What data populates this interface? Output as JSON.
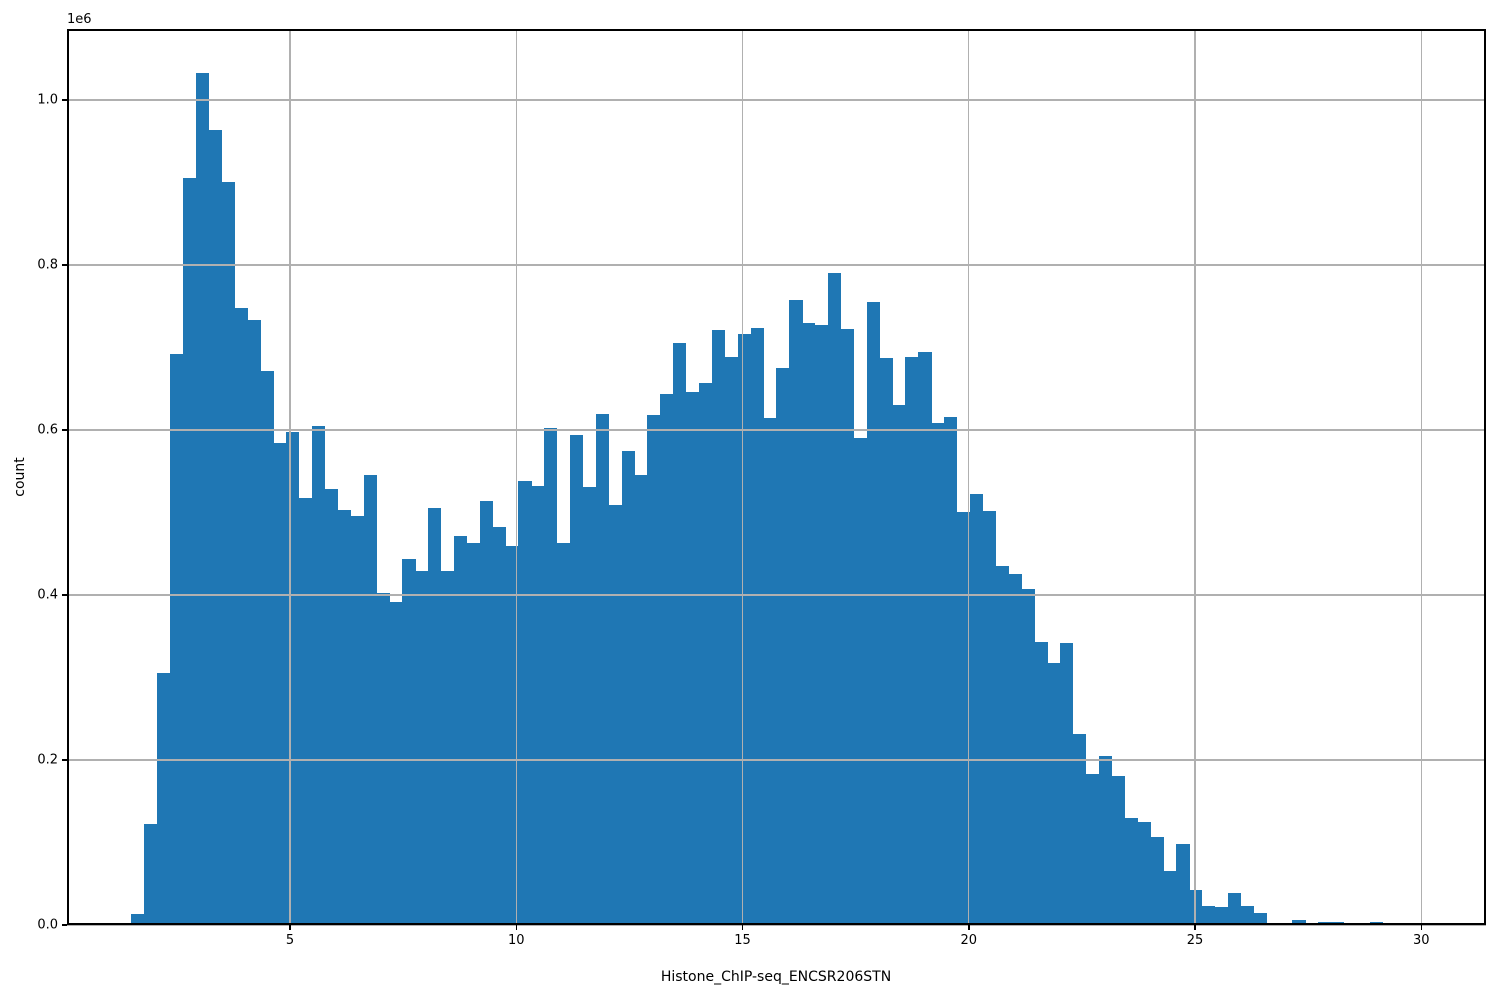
{
  "chart": {
    "xlabel": "Histone_ChIP-seq_ENCSR206STN",
    "ylabel": "count",
    "offset_label": "1e6",
    "bar_color": "#1f77b4",
    "grid_color": "#b0b0b0",
    "spine_color": "#000000",
    "background_color": "#ffffff"
  },
  "chart_data": {
    "type": "bar",
    "subtype": "histogram",
    "title": "",
    "xlabel": "Histone_ChIP-seq_ENCSR206STN",
    "ylabel": "count",
    "y_offset_text": "1e6",
    "bin_start": 1.495,
    "bin_width": 0.28505,
    "counts": [
      13000,
      122000,
      305000,
      692000,
      905000,
      1033000,
      964000,
      901000,
      748000,
      733000,
      671000,
      584000,
      598000,
      517000,
      605000,
      529000,
      503000,
      496000,
      546000,
      403000,
      391000,
      444000,
      429000,
      506000,
      429000,
      471000,
      463000,
      514000,
      483000,
      459000,
      538000,
      532000,
      603000,
      463000,
      594000,
      531000,
      619000,
      509000,
      575000,
      545000,
      618000,
      644000,
      706000,
      646000,
      657000,
      721000,
      688000,
      716000,
      724000,
      615000,
      675000,
      757000,
      730000,
      727000,
      790000,
      722000,
      590000,
      755000,
      687000,
      630000,
      688000,
      695000,
      608000,
      616000,
      501000,
      523000,
      502000,
      435000,
      425000,
      407000,
      343000,
      317000,
      342000,
      231000,
      183000,
      205000,
      181000,
      130000,
      125000,
      107000,
      65000,
      98000,
      43000,
      23000,
      22000,
      39000,
      23000,
      15000,
      1000,
      3000,
      6000,
      1000,
      3500,
      3500,
      0,
      0,
      3500,
      0,
      0,
      3000
    ],
    "xlim": [
      0.072,
      31.43
    ],
    "ylim": [
      0,
      1086000
    ],
    "x_tick_values": [
      5,
      10,
      15,
      20,
      25,
      30
    ],
    "x_tick_labels": [
      "5",
      "10",
      "15",
      "20",
      "25",
      "30"
    ],
    "y_tick_values": [
      0,
      200000,
      400000,
      600000,
      800000,
      1000000
    ],
    "y_tick_labels": [
      "0.0",
      "0.2",
      "0.4",
      "0.6",
      "0.8",
      "1.0"
    ],
    "grid": true,
    "grid_above_bars": true,
    "legend": null
  }
}
